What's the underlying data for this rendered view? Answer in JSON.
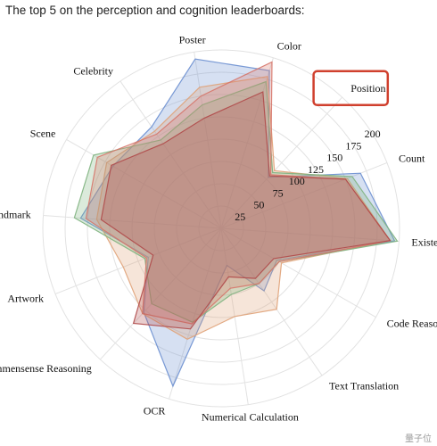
{
  "caption": "The top 5 on the perception and cognition leaderboards:",
  "watermark": "量子位",
  "chart_data": {
    "type": "radar",
    "title": "",
    "rlim": [
      0,
      200
    ],
    "ticks": [
      25,
      50,
      75,
      100,
      125,
      150,
      175,
      200
    ],
    "grid": true,
    "highlighted_axis": "Position",
    "highlight_color": "#d0402e",
    "axes": [
      "Color",
      "Position",
      "Count",
      "Existence",
      "Code Reasoning",
      "Text Translation",
      "Numerical Calculation",
      "OCR",
      "Commensense Reasoning",
      "Artwork",
      "Landmark",
      "Scene",
      "Celebrity",
      "Poster"
    ],
    "series": [
      {
        "color": "#6b8fd0",
        "values": [
          185,
          78,
          168,
          195,
          72,
          85,
          42,
          185,
          128,
          88,
          158,
          140,
          138,
          192
        ]
      },
      {
        "color": "#e0a278",
        "values": [
          178,
          88,
          152,
          190,
          78,
          110,
          100,
          130,
          130,
          118,
          140,
          148,
          132,
          160
        ]
      },
      {
        "color": "#7fb27f",
        "values": [
          172,
          85,
          158,
          198,
          75,
          75,
          75,
          110,
          115,
          92,
          165,
          165,
          120,
          140
        ]
      },
      {
        "color": "#d6756a",
        "values": [
          195,
          82,
          150,
          190,
          75,
          75,
          68,
          112,
          130,
          90,
          152,
          160,
          128,
          150
        ]
      },
      {
        "color": "#b04a4a",
        "values": [
          160,
          80,
          150,
          190,
          68,
          68,
          55,
          118,
          145,
          82,
          135,
          142,
          115,
          125
        ]
      }
    ]
  }
}
